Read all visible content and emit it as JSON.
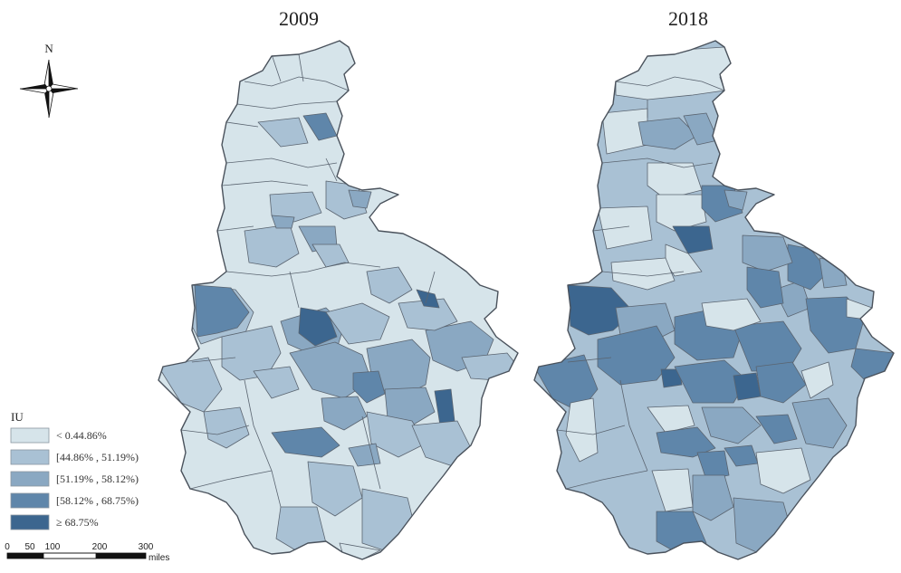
{
  "titles": {
    "left": "2009",
    "right": "2018"
  },
  "north_label": "N",
  "legend": {
    "title": "IU",
    "classes": [
      {
        "label": "< 0.44.86%",
        "color": "#d6e4ea"
      },
      {
        "label": "[44.86% , 51.19%)",
        "color": "#a9c1d4"
      },
      {
        "label": "[51.19% , 58.12%)",
        "color": "#8aa8c2"
      },
      {
        "label": "[58.12% , 68.75%)",
        "color": "#5f86aa"
      },
      {
        "label": "≥ 68.75%",
        "color": "#3c668f"
      }
    ]
  },
  "scale_bar": {
    "ticks": [
      "0",
      "50",
      "100",
      "200",
      "300"
    ],
    "unit": "miles"
  }
}
